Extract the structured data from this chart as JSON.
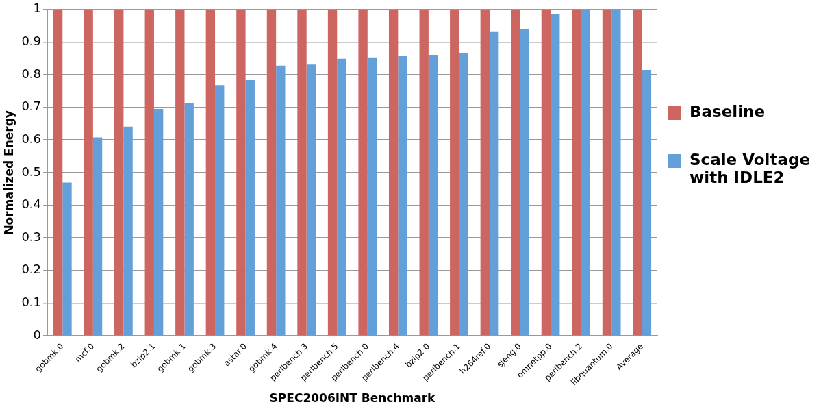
{
  "chart_data": {
    "type": "bar",
    "xlabel": "SPEC2006INT Benchmark",
    "ylabel": "Normalized Energy",
    "categories": [
      "gobmk.0",
      "mcf.0",
      "gobmk.2",
      "bzip2.1",
      "gobmk.1",
      "gobmk.3",
      "astar.0",
      "gobmk.4",
      "perlbench.3",
      "perlbench.5",
      "perlbench.0",
      "perlbench.4",
      "bzip2.0",
      "perlbench.1",
      "h264ref.0",
      "sjeng.0",
      "omnetpp.0",
      "perlbench.2",
      "libquantum.0",
      "Average"
    ],
    "series": [
      {
        "name": "Baseline",
        "color": "#cd6660",
        "values": [
          1,
          1,
          1,
          1,
          1,
          1,
          1,
          1,
          1,
          1,
          1,
          1,
          1,
          1,
          1,
          1,
          1,
          1,
          1,
          1
        ]
      },
      {
        "name": "Scale Voltage with IDLE2",
        "color": "#63a0da",
        "values": [
          0.469,
          0.608,
          0.641,
          0.695,
          0.713,
          0.768,
          0.783,
          0.828,
          0.831,
          0.849,
          0.853,
          0.857,
          0.86,
          0.867,
          0.933,
          0.941,
          0.987,
          1,
          1,
          0.815
        ]
      }
    ],
    "ylim": [
      0,
      1
    ],
    "yticks": [
      0,
      0.1,
      0.2,
      0.3,
      0.4,
      0.5,
      0.6,
      0.7,
      0.8,
      0.9,
      1
    ],
    "grid": "y",
    "legend": "right"
  }
}
